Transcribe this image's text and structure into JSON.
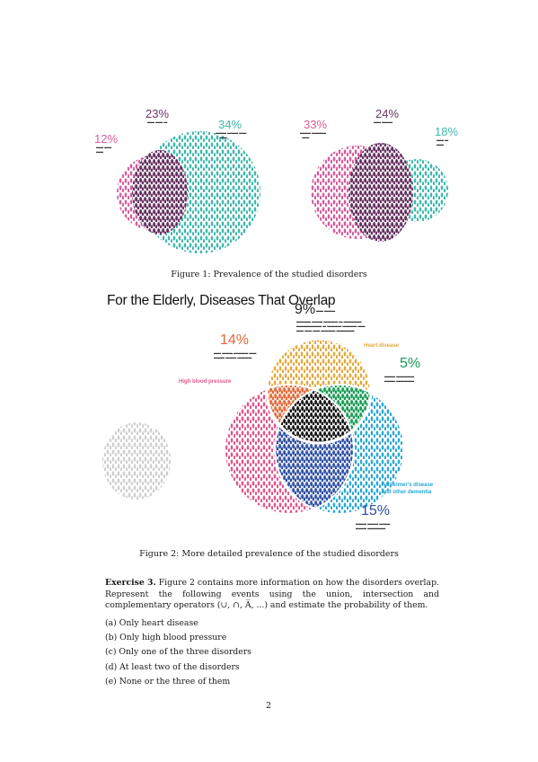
{
  "figure1": {
    "left": {
      "p1": {
        "value": "12%",
        "color": "#d85a9c"
      },
      "p2": {
        "value": "23%",
        "color": "#6a3565"
      },
      "p3": {
        "value": "34%",
        "color": "#3fb8ad"
      }
    },
    "right": {
      "p1": {
        "value": "33%",
        "color": "#d85a9c"
      },
      "p2": {
        "value": "24%",
        "color": "#6a3565"
      },
      "p3": {
        "value": "18%",
        "color": "#3fb8ad"
      }
    },
    "caption": "Figure 1: Prevalence of the studied disorders"
  },
  "figure2": {
    "title": "For the Elderly, Diseases That Overlap",
    "top": {
      "value": "9%",
      "color": "#222222"
    },
    "hbp_hd": {
      "value": "14%",
      "color": "#e0683a"
    },
    "alz_hd": {
      "value": "5%",
      "color": "#1a9a55"
    },
    "hbp_only": {
      "value": "15%",
      "color": "#2f4fa0"
    },
    "labels": {
      "heart": {
        "text": "Heart disease",
        "color": "#e5a93a"
      },
      "hbp": {
        "text": "High blood pressure",
        "color": "#e0568f"
      },
      "alz1": {
        "text": "Alzheimer's disease",
        "color": "#2aa7d4"
      },
      "alz2": {
        "text": "and other dementia",
        "color": "#2aa7d4"
      }
    },
    "caption": "Figure 2: More detailed prevalence of the studied disorders"
  },
  "exercise": {
    "heading": "Exercise 3.",
    "text": "Figure 2 contains more information on how the disorders overlap. Represent the following events using the union, intersection and complementary operators (∪, ∩, A̅, ...) and estimate the probability of them.",
    "items": [
      "(a)  Only heart disease",
      "(b)  Only high blood pressure",
      "(c)  Only one of the three disorders",
      "(d)  At least two of the disorders",
      "(e)  None or the three of them"
    ]
  },
  "page_number": "2"
}
